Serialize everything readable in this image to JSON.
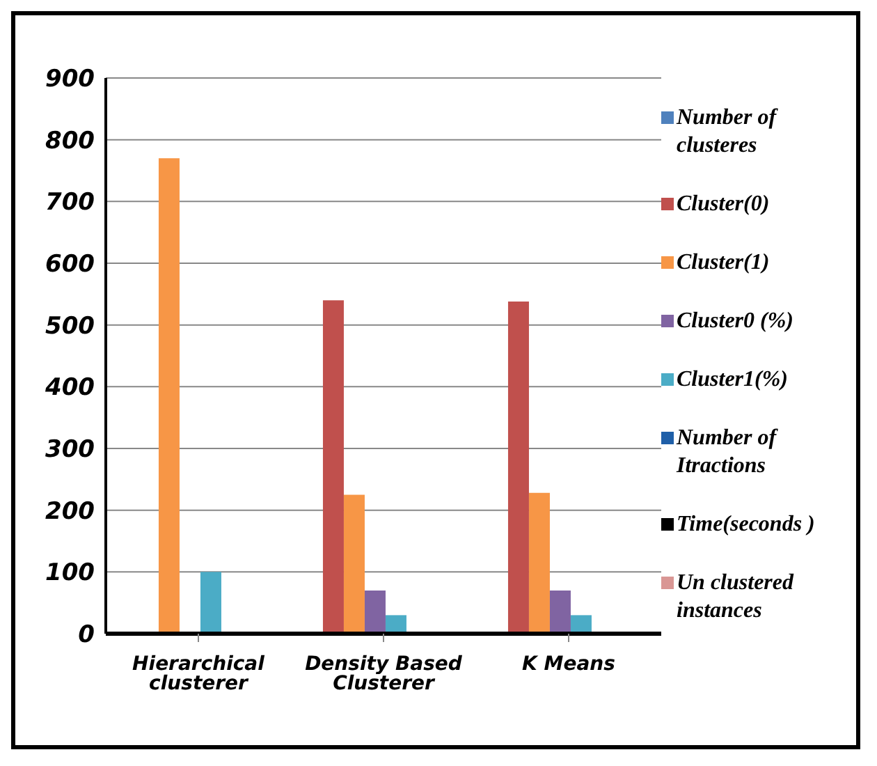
{
  "chart_data": {
    "type": "bar",
    "categories": [
      "Hierarchical clusterer",
      "Density Based Clusterer",
      "K Means"
    ],
    "series": [
      {
        "name": "Number of clusteres",
        "color": "#4f81bd",
        "values": [
          null,
          null,
          null
        ]
      },
      {
        "name": "Cluster(0)",
        "color": "#c0504d",
        "values": [
          0,
          540,
          538
        ]
      },
      {
        "name": "Cluster(1)",
        "color": "#f79646",
        "values": [
          770,
          225,
          228
        ]
      },
      {
        "name": "Cluster0 (%)",
        "color": "#8064a2",
        "values": [
          0,
          70,
          70
        ]
      },
      {
        "name": "Cluster1(%)",
        "color": "#4bacc6",
        "values": [
          100,
          30,
          30
        ]
      },
      {
        "name": "Number of Itractions",
        "color": "#1f5fa8",
        "values": [
          0,
          0,
          null
        ]
      },
      {
        "name": "Time(seconds )",
        "color": "#000000",
        "values": [
          0,
          0,
          0
        ]
      },
      {
        "name": "Un clustered instances",
        "color": "#d99694",
        "values": [
          0,
          0,
          0
        ]
      }
    ],
    "ylim": [
      0,
      900
    ],
    "yticks": [
      0,
      100,
      200,
      300,
      400,
      500,
      600,
      700,
      800,
      900
    ],
    "grid": "y",
    "legend": "right"
  }
}
